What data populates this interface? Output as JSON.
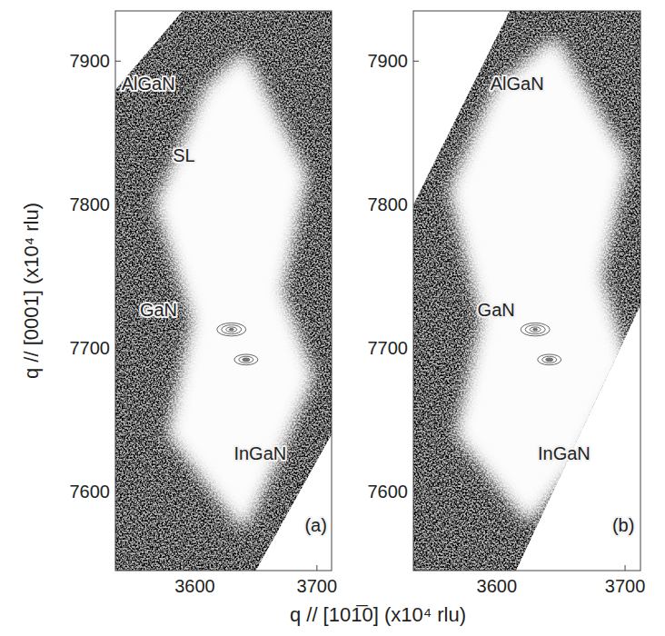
{
  "chart_data": [
    {
      "type": "contour",
      "panel": "(a)",
      "xlabel": "q // [101̅0]  (x10⁴ rlu)",
      "ylabel": "q // [0001]  (x10⁴ rlu)",
      "xlim": [
        3535,
        3712
      ],
      "ylim": [
        7545,
        7935
      ],
      "xticks": [
        3600,
        3700
      ],
      "yticks": [
        7600,
        7700,
        7800,
        7900
      ],
      "scan_area": {
        "x": [
          3535,
          3590,
          3712,
          3712,
          3650,
          3535
        ],
        "y": [
          7880,
          7935,
          7935,
          7640,
          7545,
          7545
        ]
      },
      "diffuse_region": {
        "x": [
          3640,
          3690,
          3670,
          3695,
          3665,
          3640,
          3580,
          3600,
          3570,
          3610
        ],
        "y": [
          7905,
          7820,
          7740,
          7680,
          7620,
          7575,
          7640,
          7720,
          7800,
          7880
        ]
      },
      "peaks": {
        "x": [
          3630,
          3642
        ],
        "y": [
          7713,
          7692
        ]
      },
      "annotations": [
        {
          "text": "AlGaN",
          "x": 3540,
          "y": 7880
        },
        {
          "text": "SL",
          "x": 3582,
          "y": 7830
        },
        {
          "text": "GaN",
          "x": 3555,
          "y": 7722
        },
        {
          "text": "InGaN",
          "x": 3632,
          "y": 7622
        },
        {
          "text": "(a)",
          "x": 3690,
          "y": 7572
        }
      ]
    },
    {
      "type": "contour",
      "panel": "(b)",
      "xlim": [
        3535,
        3712
      ],
      "ylim": [
        7545,
        7935
      ],
      "xticks": [
        3600,
        3700
      ],
      "yticks": [
        7600,
        7700,
        7800,
        7900
      ],
      "scan_area": {
        "x": [
          3535,
          3610,
          3712,
          3712,
          3615,
          3535
        ],
        "y": [
          7800,
          7935,
          7935,
          7730,
          7545,
          7545
        ]
      },
      "diffuse_region": {
        "x": [
          3645,
          3700,
          3680,
          3700,
          3660,
          3625,
          3570,
          3590,
          3565,
          3600
        ],
        "y": [
          7915,
          7830,
          7750,
          7690,
          7620,
          7580,
          7640,
          7720,
          7810,
          7880
        ]
      },
      "peaks": {
        "x": [
          3630,
          3641
        ],
        "y": [
          7713,
          7692
        ]
      },
      "annotations": [
        {
          "text": "AlGaN",
          "x": 3595,
          "y": 7880
        },
        {
          "text": "GaN",
          "x": 3585,
          "y": 7722
        },
        {
          "text": "InGaN",
          "x": 3632,
          "y": 7622
        },
        {
          "text": "(b)",
          "x": 3690,
          "y": 7572
        }
      ]
    }
  ]
}
